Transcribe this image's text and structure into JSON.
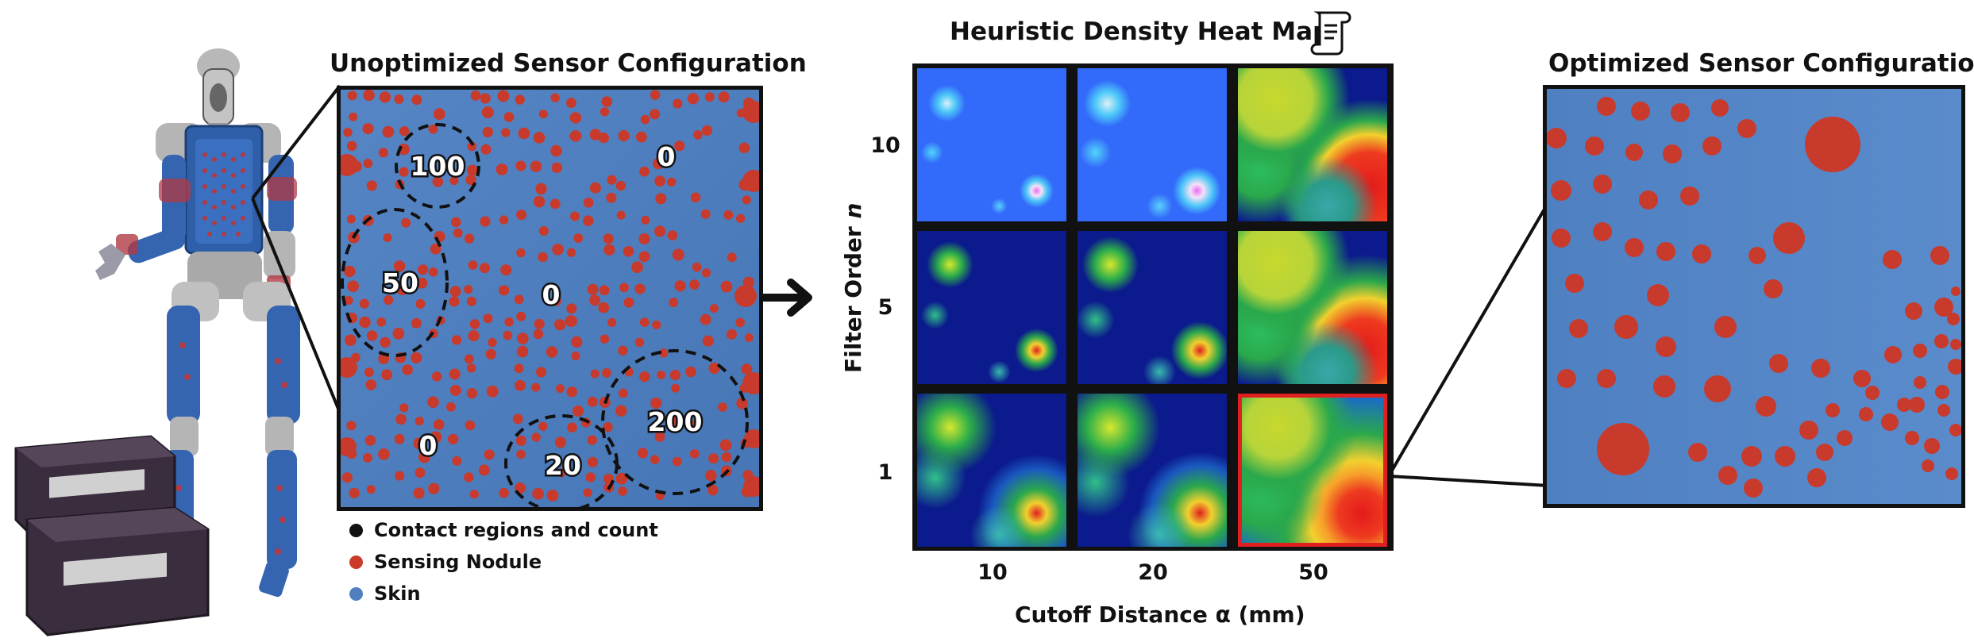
{
  "robot_panel": {
    "title": "Unoptimized Sensor Configuration",
    "region_counts": [
      "100",
      "0",
      "50",
      "0",
      "200",
      "0",
      "20"
    ]
  },
  "legend": {
    "items": [
      {
        "label": "Contact regions and count",
        "color": "#111111"
      },
      {
        "label": "Sensing Nodule",
        "color": "#cc3a2c"
      },
      {
        "label": "Skin",
        "color": "#4f7fbf"
      }
    ]
  },
  "heatmap": {
    "title": "Heuristic Density Heat Map",
    "title_icon": "scroll-document-icon",
    "ylabel_prefix": "Filter Order ",
    "ylabel_var": "n",
    "xlabel": "Cutoff Distance α (mm)",
    "row_ticks": [
      "10",
      "5",
      "1"
    ],
    "col_ticks": [
      "10",
      "20",
      "50"
    ],
    "selected_cell": {
      "row": "1",
      "col": "50"
    },
    "highlight_color": "#e02020"
  },
  "optimized_panel": {
    "title": "Optimized Sensor Configuration"
  },
  "colors": {
    "skin": "#4f7fbf",
    "nodule": "#cc3a2c",
    "heatmap_background": "#0b1a8c"
  }
}
